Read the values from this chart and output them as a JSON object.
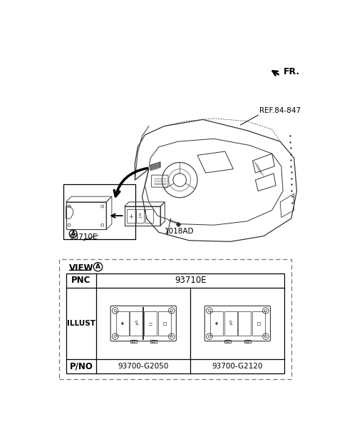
{
  "bg_color": "#ffffff",
  "fr_label": "FR.",
  "ref_label": "REF.84-847",
  "part_label_1": "93710E",
  "part_label_2": "1018AD",
  "view_label": "VIEW",
  "pnc_label": "PNC",
  "pnc_value": "93710E",
  "illust_label": "ILLUST",
  "pno_label": "P/NO",
  "pno_1": "93700-G2050",
  "pno_2": "93700-G2120",
  "line_color": "#333333",
  "text_color": "#000000"
}
